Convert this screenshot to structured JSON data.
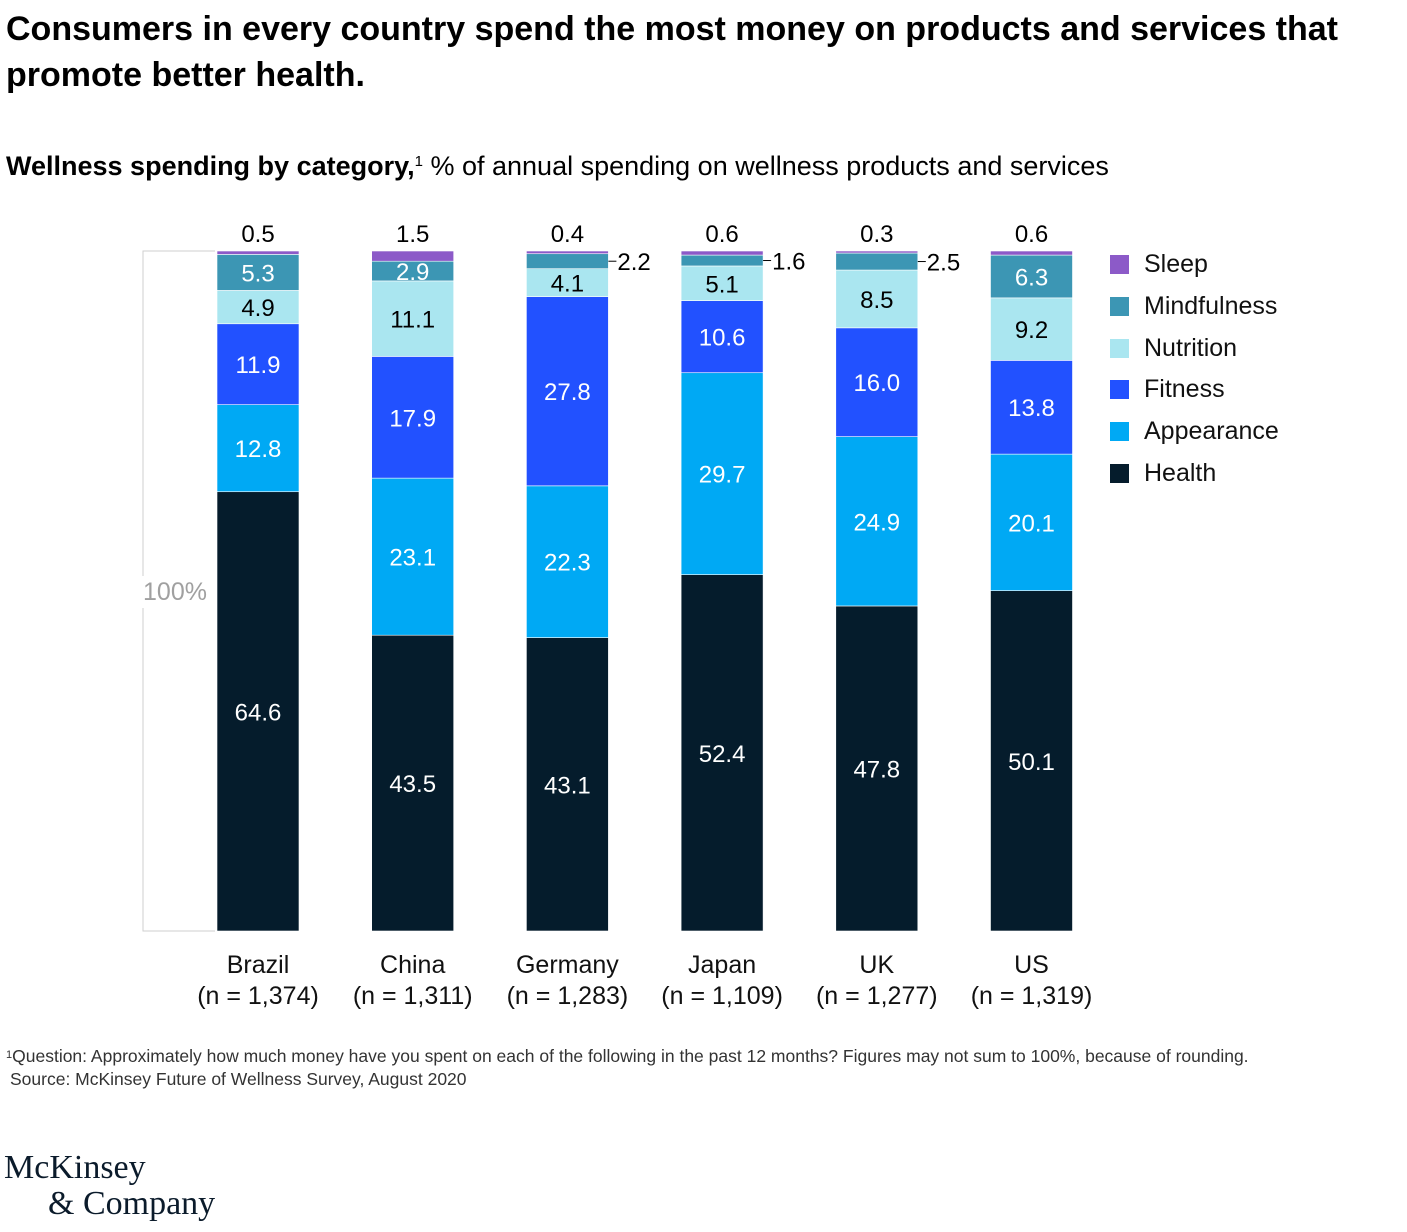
{
  "header": {
    "title": "Consumers in every country spend the most money on products and services that promote better health.",
    "subtitle_bold": "Wellness spending by category,",
    "subtitle_sup": "1",
    "subtitle_rest": " % of annual spending on wellness products and services"
  },
  "chart_data": {
    "type": "bar",
    "stacked": true,
    "total_label": "100%",
    "categories": [
      "Brazil",
      "China",
      "Germany",
      "Japan",
      "UK",
      "US"
    ],
    "category_sublabels": [
      "(n = 1,374)",
      "(n = 1,311)",
      "(n = 1,283)",
      "(n = 1,109)",
      "(n = 1,277)",
      "(n = 1,319)"
    ],
    "series": [
      {
        "name": "Health",
        "color": "#051c2c",
        "values": [
          64.6,
          43.5,
          43.1,
          52.4,
          47.8,
          50.1
        ]
      },
      {
        "name": "Appearance",
        "color": "#00a9f4",
        "values": [
          12.8,
          23.1,
          22.3,
          29.7,
          24.9,
          20.1
        ]
      },
      {
        "name": "Fitness",
        "color": "#2251ff",
        "values": [
          11.9,
          17.9,
          27.8,
          10.6,
          16.0,
          13.8
        ]
      },
      {
        "name": "Nutrition",
        "color": "#aae6f0",
        "values": [
          4.9,
          11.1,
          4.1,
          5.1,
          8.5,
          9.2
        ]
      },
      {
        "name": "Mindfulness",
        "color": "#3c96b4",
        "values": [
          5.3,
          2.9,
          2.2,
          1.6,
          2.5,
          6.3
        ]
      },
      {
        "name": "Sleep",
        "color": "#8c5ac8",
        "values": [
          0.5,
          1.5,
          0.4,
          0.6,
          0.3,
          0.6
        ]
      }
    ],
    "legend_order": [
      "Sleep",
      "Mindfulness",
      "Nutrition",
      "Fitness",
      "Appearance",
      "Health"
    ],
    "legend_placement": "right",
    "grid": false
  },
  "footnote": {
    "marker": "1",
    "question": "Question: Approximately how much money have you spent on each of the following in the past 12 months? Figures may not sum to 100%, because of rounding.",
    "source": "Source: McKinsey Future of Wellness Survey, August 2020"
  },
  "logo": {
    "line1": "McKinsey",
    "line2": "& Company"
  }
}
